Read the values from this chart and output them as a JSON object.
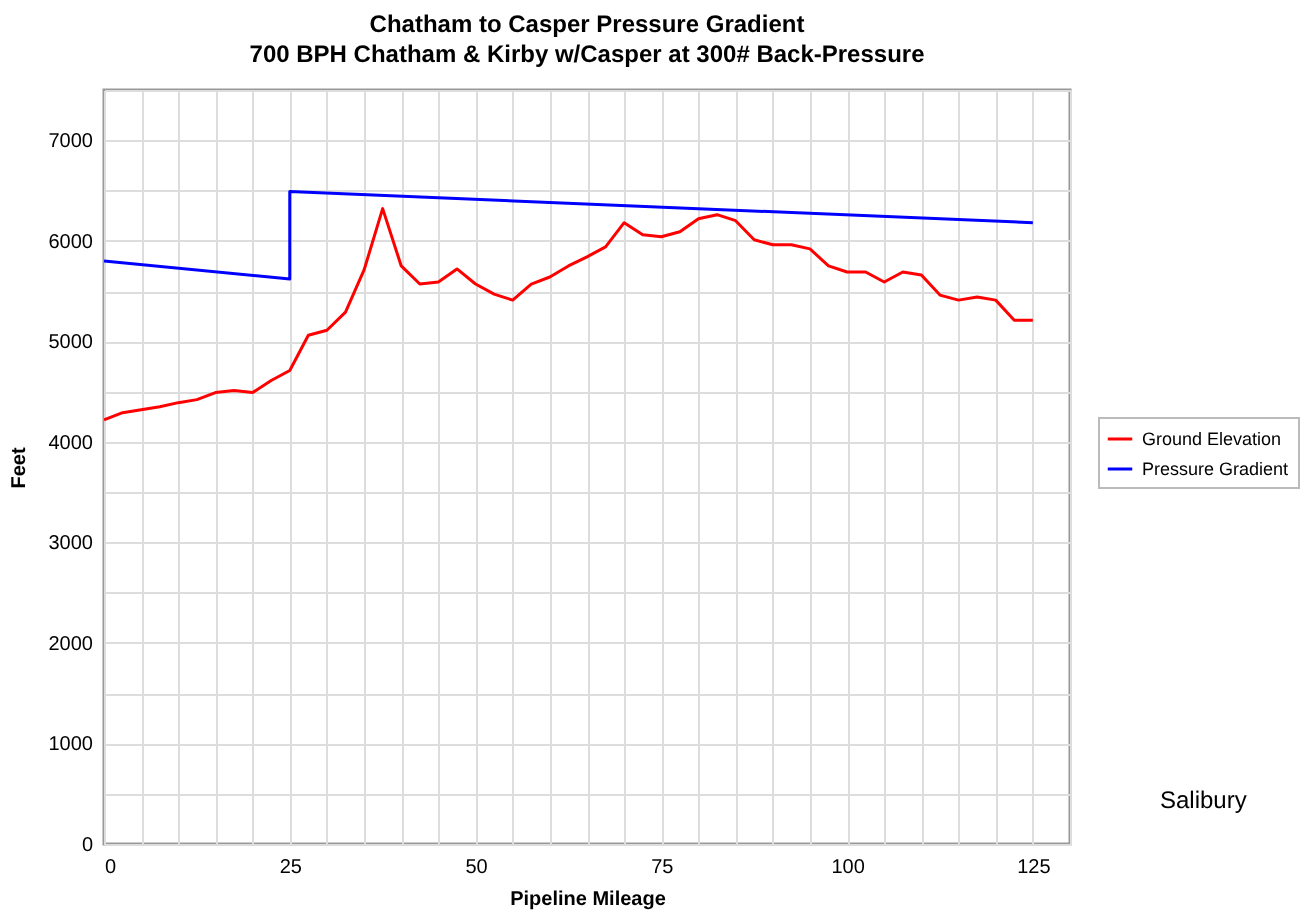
{
  "chart_data": {
    "type": "line",
    "title": "Chatham to Casper Pressure Gradient",
    "subtitle": "700 BPH Chatham & Kirby w/Casper at 300# Back-Pressure",
    "xlabel": "Pipeline Mileage",
    "ylabel": "Feet",
    "xlim": [
      0,
      130
    ],
    "ylim": [
      0,
      7500
    ],
    "xticks": [
      0,
      {
        "value": 5,
        "label": null
      },
      {
        "value": 10,
        "label": null
      },
      {
        "value": 15,
        "label": null
      },
      {
        "value": 20,
        "label": null
      },
      25,
      {
        "value": 30,
        "label": null
      },
      {
        "value": 35,
        "label": null
      },
      {
        "value": 40,
        "label": null
      },
      {
        "value": 45,
        "label": null
      },
      50,
      {
        "value": 55,
        "label": null
      },
      {
        "value": 60,
        "label": null
      },
      {
        "value": 65,
        "label": null
      },
      {
        "value": 70,
        "label": null
      },
      75,
      {
        "value": 80,
        "label": null
      },
      {
        "value": 85,
        "label": null
      },
      {
        "value": 90,
        "label": null
      },
      {
        "value": 95,
        "label": null
      },
      100,
      {
        "value": 105,
        "label": null
      },
      {
        "value": 110,
        "label": null
      },
      {
        "value": 115,
        "label": null
      },
      {
        "value": 120,
        "label": null
      },
      125,
      {
        "value": 130,
        "label": null
      }
    ],
    "yticks": [
      0,
      {
        "value": 500,
        "label": null
      },
      1000,
      {
        "value": 1500,
        "label": null
      },
      2000,
      {
        "value": 2500,
        "label": null
      },
      3000,
      {
        "value": 3500,
        "label": null
      },
      4000,
      {
        "value": 4500,
        "label": null
      },
      5000,
      {
        "value": 5500,
        "label": null
      },
      6000,
      {
        "value": 6500,
        "label": null
      },
      7000,
      {
        "value": 7500,
        "label": null
      }
    ],
    "grid": true,
    "legend": "right",
    "line_style": "solid",
    "annotations": [
      "Salibury"
    ],
    "series": [
      {
        "name": "Ground Elevation",
        "color": "#ff0000",
        "x": [
          0,
          2.5,
          5,
          7.5,
          10,
          12.5,
          15,
          17.5,
          20,
          22.5,
          25,
          27.5,
          30,
          32.5,
          35,
          37.5,
          40,
          42.5,
          45,
          47.5,
          50,
          52.5,
          55,
          57.5,
          60,
          62.5,
          65,
          67.5,
          70,
          72.5,
          75,
          77.5,
          80,
          82.5,
          85,
          87.5,
          90,
          92.5,
          95,
          97.5,
          100,
          102.5,
          105,
          107.5,
          110,
          112.5,
          115,
          117.5,
          120,
          122.5,
          125
        ],
        "values": [
          4220,
          4290,
          4320,
          4350,
          4390,
          4420,
          4490,
          4510,
          4490,
          4610,
          4710,
          5060,
          5110,
          5290,
          5710,
          6320,
          5750,
          5570,
          5590,
          5720,
          5570,
          5470,
          5410,
          5570,
          5640,
          5750,
          5840,
          5940,
          6180,
          6060,
          6040,
          6090,
          6220,
          6260,
          6200,
          6010,
          5960,
          5960,
          5920,
          5750,
          5690,
          5690,
          5590,
          5690,
          5660,
          5460,
          5410,
          5440,
          5410,
          5210,
          5210
        ]
      },
      {
        "name": "Pressure Gradient",
        "color": "#0000ff",
        "x": [
          0,
          25,
          25,
          125
        ],
        "values": [
          5800,
          5620,
          6490,
          6180
        ]
      }
    ]
  }
}
